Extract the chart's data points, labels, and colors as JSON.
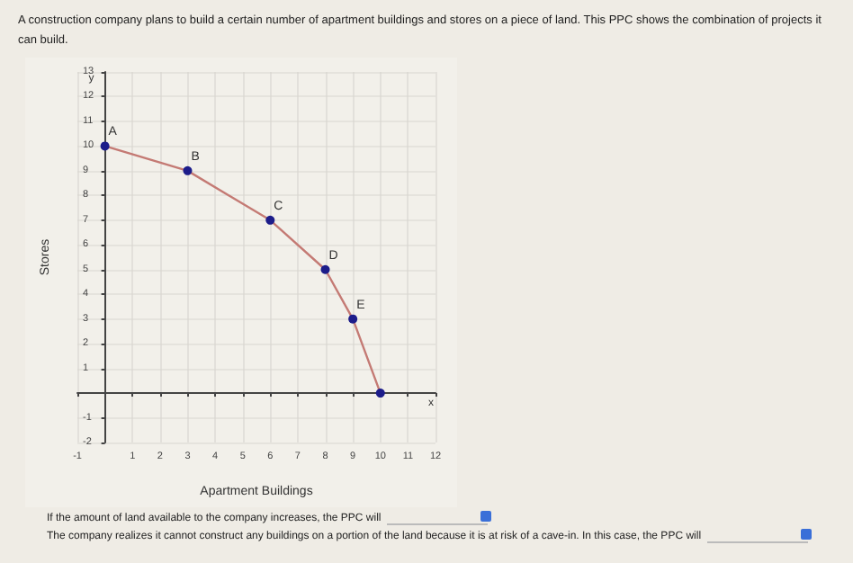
{
  "chart_data": {
    "type": "line",
    "title": "A construction company plans to build a certain number of apartment buildings and stores on a piece of land. This PPC shows the combination of projects it can build.",
    "xlabel": "Apartment Buildings",
    "ylabel": "Stores",
    "x": [
      0,
      3,
      6,
      8,
      9,
      10
    ],
    "series": [
      {
        "color": "#c47a74",
        "colors": [
          "#1c1c8a",
          "#1c1c8a",
          "#1c1c8a",
          "#1c1c8a",
          "#1c1c8a",
          "#1c1c8a"
        ],
        "values": [
          10,
          9,
          7,
          5,
          3,
          0
        ]
      }
    ],
    "xlim": [
      -1,
      12
    ],
    "xticks": [
      -1,
      1,
      2,
      3,
      4,
      5,
      6,
      7,
      8,
      9,
      10,
      11,
      12
    ],
    "ylim": [
      -2,
      13
    ],
    "yticks": [
      -2,
      -1,
      1,
      2,
      3,
      4,
      5,
      6,
      7,
      8,
      9,
      10,
      11,
      12,
      13
    ],
    "grid": true,
    "marker": "circle",
    "line_style": "solid",
    "annotations": [
      {
        "text": "A",
        "x": 0,
        "y": 10
      },
      {
        "text": "B",
        "x": 3,
        "y": 9
      },
      {
        "text": "C",
        "x": 6,
        "y": 7
      },
      {
        "text": "D",
        "x": 8,
        "y": 5
      },
      {
        "text": "E",
        "x": 9,
        "y": 3
      },
      "x",
      "y",
      "If the amount of land available to the company increases, the PPC will",
      "The company realizes it cannot construct any buildings on a portion of the land because it is at risk of a cave-in. In this case, the PPC will"
    ]
  }
}
